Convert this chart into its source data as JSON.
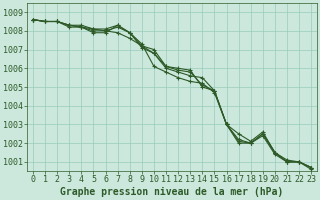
{
  "title": "Graphe pression niveau de la mer (hPa)",
  "background_color": "#cce8dd",
  "grid_color": "#99ccbb",
  "line_color": "#2d5a27",
  "xlim": [
    -0.5,
    23.5
  ],
  "ylim": [
    1000.5,
    1009.5
  ],
  "yticks": [
    1001,
    1002,
    1003,
    1004,
    1005,
    1006,
    1007,
    1008,
    1009
  ],
  "xticks": [
    0,
    1,
    2,
    3,
    4,
    5,
    6,
    7,
    8,
    9,
    10,
    11,
    12,
    13,
    14,
    15,
    16,
    17,
    18,
    19,
    20,
    21,
    22,
    23
  ],
  "xlabels": [
    "0",
    "1",
    "2",
    "3",
    "4",
    "5",
    "6",
    "7",
    "8",
    "9",
    "10",
    "11",
    "12",
    "13",
    "14",
    "15",
    "16",
    "17",
    "18",
    "19",
    "20",
    "21",
    "22",
    "23"
  ],
  "series": [
    [
      1008.6,
      1008.5,
      1008.5,
      1008.3,
      1008.3,
      1008.1,
      1008.0,
      1008.2,
      1007.9,
      1007.2,
      1007.0,
      1006.1,
      1005.9,
      1005.8,
      1005.1,
      1004.8,
      1003.0,
      1002.2,
      1002.0,
      1002.5,
      1001.5,
      1001.1,
      1001.0,
      1000.7
    ],
    [
      1008.6,
      1008.5,
      1008.5,
      1008.3,
      1008.2,
      1008.1,
      1008.1,
      1008.3,
      1007.9,
      1007.1,
      1006.8,
      1006.1,
      1006.0,
      1005.9,
      1005.0,
      1004.8,
      1003.0,
      1002.1,
      1002.0,
      1002.5,
      1001.5,
      1001.0,
      1001.0,
      1000.7
    ],
    [
      1008.6,
      1008.5,
      1008.5,
      1008.2,
      1008.2,
      1007.9,
      1007.9,
      1008.3,
      1007.9,
      1007.3,
      1006.1,
      1005.8,
      1005.5,
      1005.3,
      1005.2,
      1004.7,
      1003.0,
      1002.0,
      1002.0,
      1002.4,
      1001.4,
      1001.0,
      1001.0,
      1000.6
    ],
    [
      1008.6,
      1008.5,
      1008.5,
      1008.3,
      1008.2,
      1008.0,
      1008.0,
      1007.9,
      1007.6,
      1007.2,
      1006.8,
      1006.0,
      1005.8,
      1005.6,
      1005.5,
      1004.8,
      1003.0,
      1002.5,
      1002.1,
      1002.6,
      1001.5,
      1001.0,
      1001.0,
      1000.7
    ]
  ],
  "tick_fontsize": 6,
  "xlabel_fontsize": 7,
  "spine_color": "#2d5a27",
  "marker": "+",
  "markersize": 3,
  "linewidth": 0.8
}
